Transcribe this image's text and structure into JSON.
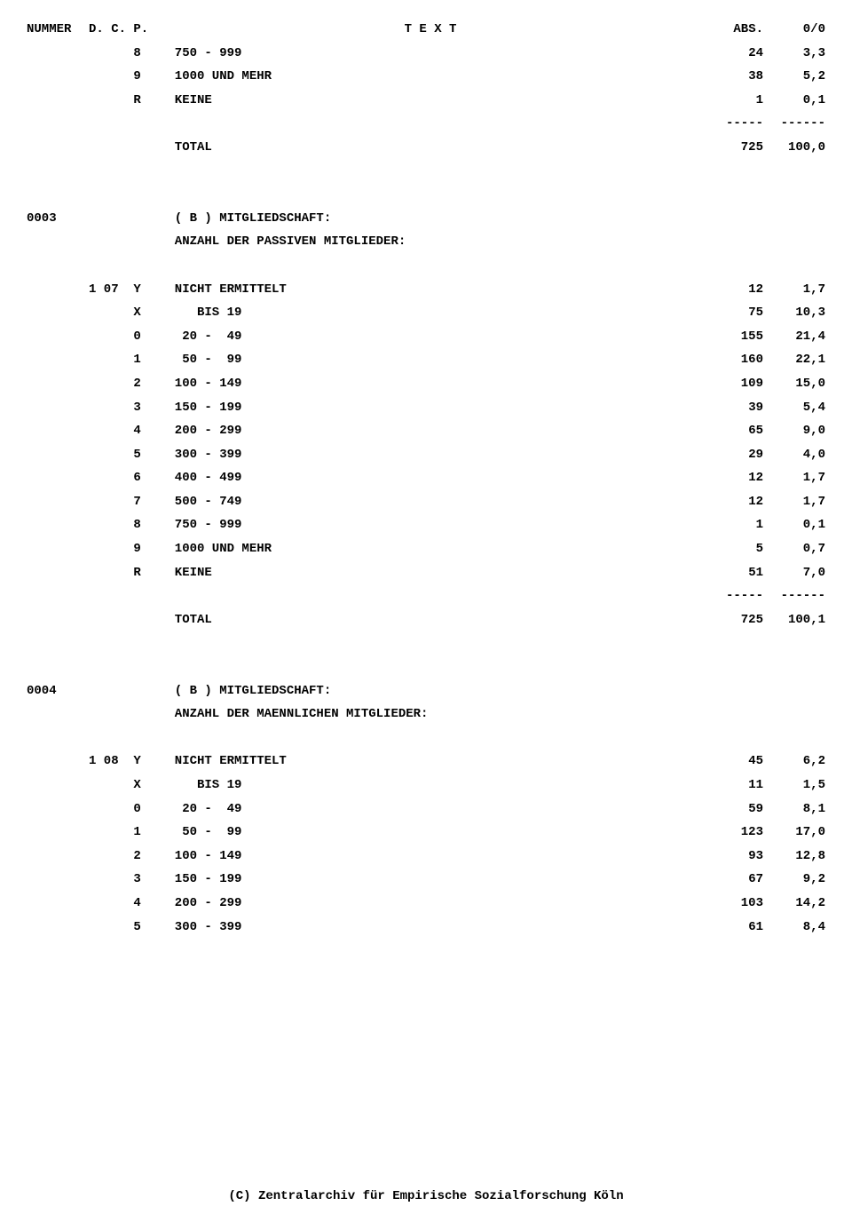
{
  "header": {
    "nummer": "NUMMER",
    "dcp": "D. C. P.",
    "text": "T E X T",
    "abs": "ABS.",
    "pct": "0/0"
  },
  "rows": [
    {
      "nummer": "",
      "dcp": "      8",
      "text": "  750 - 999",
      "abs": "24",
      "pct": "3,3"
    },
    {
      "nummer": "",
      "dcp": "      9",
      "text": "  1000 UND MEHR",
      "abs": "38",
      "pct": "5,2"
    },
    {
      "nummer": "",
      "dcp": "      R",
      "text": "  KEINE",
      "abs": "1",
      "pct": "0,1"
    },
    {
      "nummer": "",
      "dcp": "",
      "text": "",
      "abs": "-----",
      "pct": "------"
    },
    {
      "nummer": "",
      "dcp": "",
      "text": "  TOTAL",
      "abs": "725",
      "pct": "100,0"
    },
    {
      "blank": true
    },
    {
      "blank": true
    },
    {
      "nummer": "0003",
      "dcp": "",
      "text": "  ( B ) MITGLIEDSCHAFT:",
      "abs": "",
      "pct": ""
    },
    {
      "nummer": "",
      "dcp": "",
      "text": "  ANZAHL DER PASSIVEN MITGLIEDER:",
      "abs": "",
      "pct": ""
    },
    {
      "blank": true
    },
    {
      "nummer": "",
      "dcp": "1 07  Y",
      "text": "  NICHT ERMITTELT",
      "abs": "12",
      "pct": "1,7"
    },
    {
      "nummer": "",
      "dcp": "      X",
      "text": "     BIS 19",
      "abs": "75",
      "pct": "10,3"
    },
    {
      "nummer": "",
      "dcp": "      0",
      "text": "   20 -  49",
      "abs": "155",
      "pct": "21,4"
    },
    {
      "nummer": "",
      "dcp": "      1",
      "text": "   50 -  99",
      "abs": "160",
      "pct": "22,1"
    },
    {
      "nummer": "",
      "dcp": "      2",
      "text": "  100 - 149",
      "abs": "109",
      "pct": "15,0"
    },
    {
      "nummer": "",
      "dcp": "      3",
      "text": "  150 - 199",
      "abs": "39",
      "pct": "5,4"
    },
    {
      "nummer": "",
      "dcp": "      4",
      "text": "  200 - 299",
      "abs": "65",
      "pct": "9,0"
    },
    {
      "nummer": "",
      "dcp": "      5",
      "text": "  300 - 399",
      "abs": "29",
      "pct": "4,0"
    },
    {
      "nummer": "",
      "dcp": "      6",
      "text": "  400 - 499",
      "abs": "12",
      "pct": "1,7"
    },
    {
      "nummer": "",
      "dcp": "      7",
      "text": "  500 - 749",
      "abs": "12",
      "pct": "1,7"
    },
    {
      "nummer": "",
      "dcp": "      8",
      "text": "  750 - 999",
      "abs": "1",
      "pct": "0,1"
    },
    {
      "nummer": "",
      "dcp": "      9",
      "text": "  1000 UND MEHR",
      "abs": "5",
      "pct": "0,7"
    },
    {
      "nummer": "",
      "dcp": "      R",
      "text": "  KEINE",
      "abs": "51",
      "pct": "7,0"
    },
    {
      "nummer": "",
      "dcp": "",
      "text": "",
      "abs": "-----",
      "pct": "------"
    },
    {
      "nummer": "",
      "dcp": "",
      "text": "  TOTAL",
      "abs": "725",
      "pct": "100,1"
    },
    {
      "blank": true
    },
    {
      "blank": true
    },
    {
      "nummer": "0004",
      "dcp": "",
      "text": "  ( B ) MITGLIEDSCHAFT:",
      "abs": "",
      "pct": ""
    },
    {
      "nummer": "",
      "dcp": "",
      "text": "  ANZAHL DER MAENNLICHEN MITGLIEDER:",
      "abs": "",
      "pct": ""
    },
    {
      "blank": true
    },
    {
      "nummer": "",
      "dcp": "1 08  Y",
      "text": "  NICHT ERMITTELT",
      "abs": "45",
      "pct": "6,2"
    },
    {
      "nummer": "",
      "dcp": "      X",
      "text": "     BIS 19",
      "abs": "11",
      "pct": "1,5"
    },
    {
      "nummer": "",
      "dcp": "      0",
      "text": "   20 -  49",
      "abs": "59",
      "pct": "8,1"
    },
    {
      "nummer": "",
      "dcp": "      1",
      "text": "   50 -  99",
      "abs": "123",
      "pct": "17,0"
    },
    {
      "nummer": "",
      "dcp": "      2",
      "text": "  100 - 149",
      "abs": "93",
      "pct": "12,8"
    },
    {
      "nummer": "",
      "dcp": "      3",
      "text": "  150 - 199",
      "abs": "67",
      "pct": "9,2"
    },
    {
      "nummer": "",
      "dcp": "      4",
      "text": "  200 - 299",
      "abs": "103",
      "pct": "14,2"
    },
    {
      "nummer": "",
      "dcp": "      5",
      "text": "  300 - 399",
      "abs": "61",
      "pct": "8,4"
    }
  ],
  "footer": "(C) Zentralarchiv für Empirische Sozialforschung Köln"
}
